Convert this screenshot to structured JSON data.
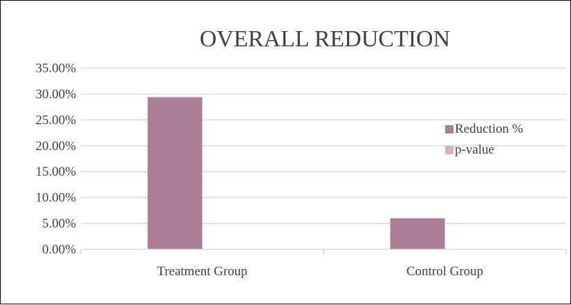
{
  "chart_data": {
    "type": "bar",
    "title": "OVERALL REDUCTION",
    "xlabel": "",
    "ylabel": "",
    "categories": [
      "Treatment Group",
      "Control Group"
    ],
    "series": [
      {
        "name": "Reduction %",
        "values": [
          0.294,
          0.06
        ],
        "color": "#ab7e95"
      },
      {
        "name": "p-value",
        "values": [
          0,
          0
        ],
        "color": "#d8afc4"
      }
    ],
    "ylim": [
      0,
      0.35
    ],
    "y_ticks": [
      0,
      0.05,
      0.1,
      0.15,
      0.2,
      0.25,
      0.3,
      0.35
    ],
    "y_tick_labels": [
      "0.00%",
      "5.00%",
      "10.00%",
      "15.00%",
      "20.00%",
      "25.00%",
      "30.00%",
      "35.00%"
    ],
    "grid": true,
    "gridline_color": "#d9d9d9",
    "legend_position": "right"
  }
}
